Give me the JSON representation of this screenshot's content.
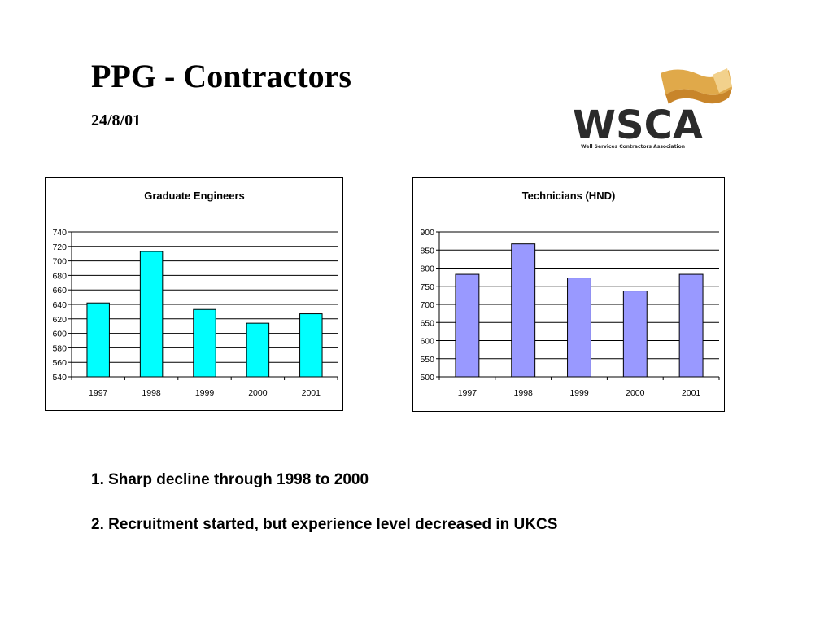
{
  "slide": {
    "title": "PPG - Contractors",
    "date": "24/8/01"
  },
  "logo": {
    "text": "WSCA",
    "tagline": "Well Services Contractors Association",
    "colors": {
      "text": "#2b2b2b",
      "accent": "#d9a441"
    }
  },
  "notes": [
    "1. Sharp decline through 1998 to 2000",
    "2. Recruitment started, but experience level decreased in UKCS"
  ],
  "chart_data": [
    {
      "type": "bar",
      "title": "Graduate Engineers",
      "categories": [
        "1997",
        "1998",
        "1999",
        "2000",
        "2001"
      ],
      "values": [
        642,
        713,
        633,
        614,
        627
      ],
      "ylim": [
        540,
        740
      ],
      "ytick_step": 20,
      "grid": true,
      "legend": "none",
      "bar_color": "#00ffff"
    },
    {
      "type": "bar",
      "title": "Technicians (HND)",
      "categories": [
        "1997",
        "1998",
        "1999",
        "2000",
        "2001"
      ],
      "values": [
        783,
        867,
        773,
        737,
        783
      ],
      "ylim": [
        500,
        900
      ],
      "ytick_step": 50,
      "grid": true,
      "legend": "none",
      "bar_color": "#9999ff"
    }
  ]
}
